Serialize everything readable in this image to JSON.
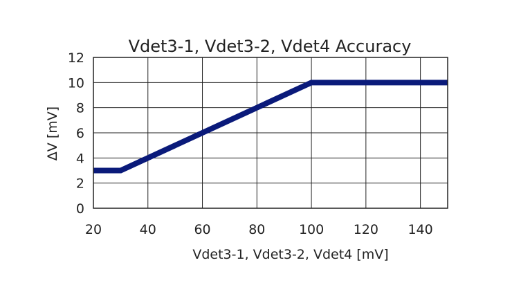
{
  "chart_data": {
    "type": "line",
    "title": "Vdet3-1, Vdet3-2, Vdet4 Accuracy",
    "xlabel": "Vdet3-1, Vdet3-2, Vdet4 [mV]",
    "ylabel": "ΔV [mV]",
    "xlim": [
      20,
      150
    ],
    "ylim": [
      0,
      12
    ],
    "xticks": [
      20,
      40,
      60,
      80,
      100,
      120,
      140
    ],
    "yticks": [
      0,
      2,
      4,
      6,
      8,
      10,
      12
    ],
    "grid": true,
    "series": [
      {
        "color": "#0a1a7a",
        "x": [
          20,
          30,
          100,
          150
        ],
        "y": [
          3,
          3,
          10,
          10
        ]
      }
    ]
  }
}
